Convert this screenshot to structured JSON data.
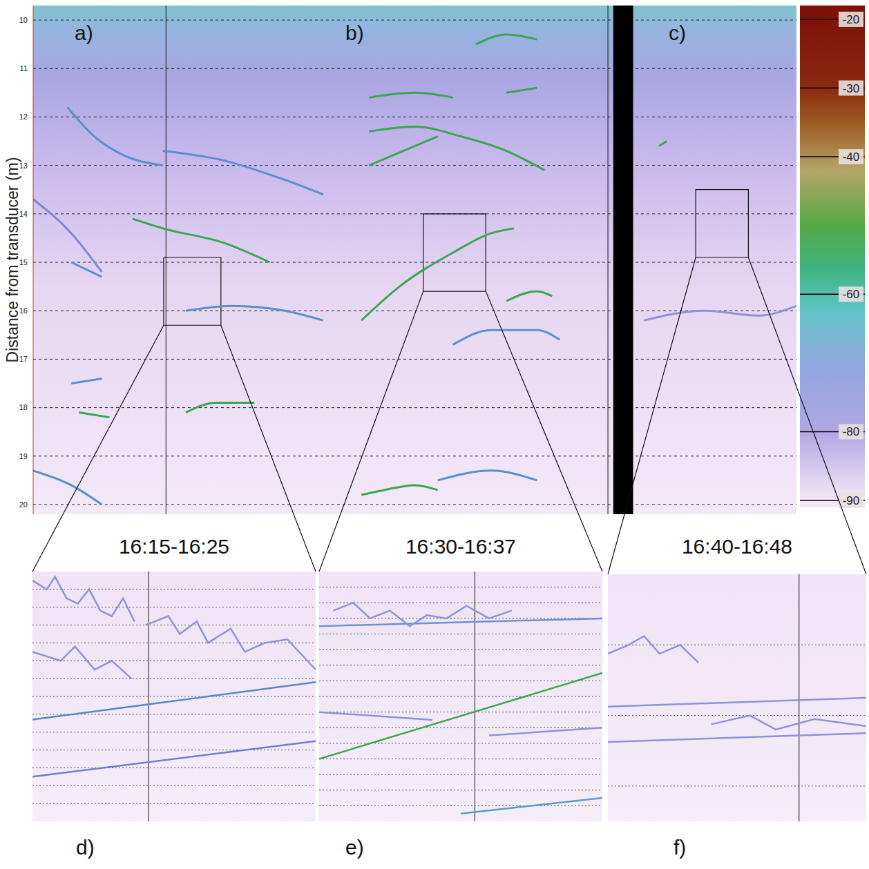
{
  "chart_data": [
    {
      "type": "line",
      "y_label": "Distance from transducer (m)",
      "panel_labels": [
        "a)",
        "b)",
        "c)"
      ],
      "xlim": [
        0,
        100
      ],
      "ylim": [
        9.7,
        20.2
      ],
      "yticks": [
        10,
        11,
        12,
        13,
        14,
        15,
        16,
        17,
        18,
        19,
        20
      ],
      "grid": true,
      "tick_labels": "y",
      "blank": [
        76.0,
        78.6
      ],
      "vlines": [
        17.4,
        75.3
      ],
      "zoom_boxes": [
        {
          "xlim": [
            17.1,
            24.6
          ],
          "ylim": [
            14.9,
            16.3
          ]
        },
        {
          "xlim": [
            51.1,
            59.3
          ],
          "ylim": [
            14.0,
            15.6
          ]
        },
        {
          "xlim": [
            86.8,
            93.7
          ],
          "ylim": [
            13.5,
            14.9
          ]
        }
      ],
      "colorbar": {
        "range": [
          -18,
          -91
        ],
        "ticks": [
          -20,
          -30,
          -40,
          -60,
          -80,
          -90
        ],
        "stops": [
          {
            "value": -20,
            "color": "#7f1208"
          },
          {
            "value": -30,
            "color": "#8a2a10"
          },
          {
            "value": -36,
            "color": "#a0642a"
          },
          {
            "value": -42,
            "color": "#b5a56a"
          },
          {
            "value": -50,
            "color": "#55a845"
          },
          {
            "value": -56,
            "color": "#3fb27c"
          },
          {
            "value": -62,
            "color": "#5ec4c4"
          },
          {
            "value": -70,
            "color": "#8fa8de"
          },
          {
            "value": -80,
            "color": "#b1a6e4"
          },
          {
            "value": -90,
            "color": "#f4e8f6"
          }
        ]
      },
      "series": [
        {
          "color": "#5b8fc9",
          "x": [
            4.5,
            8,
            12,
            17
          ],
          "values": [
            11.8,
            12.4,
            12.8,
            13.0
          ]
        },
        {
          "color": "#5b8fc9",
          "x": [
            17,
            25,
            33,
            38
          ],
          "values": [
            12.7,
            12.9,
            13.3,
            13.6
          ]
        },
        {
          "color": "#3aa650",
          "x": [
            13,
            17,
            25,
            31
          ],
          "values": [
            14.1,
            14.3,
            14.6,
            15.0
          ]
        },
        {
          "color": "#7d88d6",
          "x": [
            0,
            5,
            9
          ],
          "values": [
            13.7,
            14.4,
            15.2
          ]
        },
        {
          "color": "#5b8fc9",
          "x": [
            5,
            9
          ],
          "values": [
            15.0,
            15.3
          ]
        },
        {
          "color": "#5b8fc9",
          "x": [
            20,
            26,
            33,
            38
          ],
          "values": [
            16.0,
            15.9,
            16.0,
            16.2
          ]
        },
        {
          "color": "#3aa650",
          "x": [
            6,
            10
          ],
          "values": [
            18.1,
            18.2
          ]
        },
        {
          "color": "#3aa650",
          "x": [
            20,
            24,
            29
          ],
          "values": [
            18.1,
            17.9,
            17.9
          ]
        },
        {
          "color": "#5b8fc9",
          "x": [
            0,
            5,
            9
          ],
          "values": [
            19.3,
            19.6,
            20.0
          ]
        },
        {
          "color": "#5b8fc9",
          "x": [
            5,
            9
          ],
          "values": [
            17.5,
            17.4
          ]
        },
        {
          "color": "#3aa650",
          "x": [
            43,
            46,
            50,
            53
          ],
          "values": [
            19.8,
            19.7,
            19.6,
            19.7
          ]
        },
        {
          "color": "#3aa650",
          "x": [
            43,
            48,
            55,
            60,
            63
          ],
          "values": [
            16.2,
            15.5,
            14.8,
            14.4,
            14.3
          ]
        },
        {
          "color": "#3aa650",
          "x": [
            44,
            50,
            56,
            62,
            67
          ],
          "values": [
            12.3,
            12.2,
            12.4,
            12.7,
            13.1
          ]
        },
        {
          "color": "#3aa650",
          "x": [
            44,
            50,
            55
          ],
          "values": [
            11.6,
            11.5,
            11.6
          ]
        },
        {
          "color": "#3aa650",
          "x": [
            58,
            62,
            66
          ],
          "values": [
            10.5,
            10.3,
            10.4
          ]
        },
        {
          "color": "#3aa650",
          "x": [
            62,
            66
          ],
          "values": [
            11.5,
            11.4
          ]
        },
        {
          "color": "#3aa650",
          "x": [
            44,
            50,
            53
          ],
          "values": [
            13.0,
            12.6,
            12.4
          ]
        },
        {
          "color": "#3aa650",
          "x": [
            62,
            66,
            68
          ],
          "values": [
            15.8,
            15.6,
            15.7
          ]
        },
        {
          "color": "#5b8fc9",
          "x": [
            55,
            60,
            66,
            69
          ],
          "values": [
            16.7,
            16.4,
            16.4,
            16.6
          ]
        },
        {
          "color": "#5b8fc9",
          "x": [
            53,
            60,
            66
          ],
          "values": [
            19.5,
            19.3,
            19.5
          ]
        },
        {
          "color": "#3aa650",
          "x": [
            82,
            83
          ],
          "values": [
            12.6,
            12.5
          ]
        },
        {
          "color": "#8c93d8",
          "x": [
            80,
            88,
            95,
            100
          ],
          "values": [
            16.2,
            16.0,
            16.1,
            15.9
          ]
        }
      ]
    },
    {
      "type": "line",
      "title": "16:15-16:25",
      "label": "d)",
      "xlim": [
        0,
        100
      ],
      "ylim": [
        14.9,
        16.3
      ],
      "yticks": [
        15.0,
        15.1,
        15.2,
        15.3,
        15.4,
        15.5,
        15.6,
        15.7,
        15.8,
        15.9,
        16.0,
        16.1,
        16.2
      ],
      "grid": true,
      "tick_labels": false,
      "vlines": [
        41
      ],
      "series": [
        {
          "color": "#5a86c8",
          "x": [
            0,
            100
          ],
          "values": [
            15.73,
            15.52
          ]
        },
        {
          "color": "#6f7fcf",
          "x": [
            0,
            100
          ],
          "values": [
            16.05,
            15.85
          ]
        },
        {
          "color": "#8c93d8",
          "x": [
            0,
            5,
            8,
            12,
            16,
            20,
            24,
            28,
            32,
            36
          ],
          "values": [
            14.95,
            15.0,
            14.93,
            15.05,
            15.08,
            15.0,
            15.12,
            15.15,
            15.05,
            15.18
          ]
        },
        {
          "color": "#8c93d8",
          "x": [
            40,
            48,
            52,
            58,
            62,
            70,
            75,
            82,
            90,
            100
          ],
          "values": [
            15.2,
            15.15,
            15.25,
            15.18,
            15.3,
            15.22,
            15.35,
            15.3,
            15.28,
            15.45
          ]
        },
        {
          "color": "#8c93d8",
          "x": [
            0,
            10,
            15,
            22,
            28,
            35
          ],
          "values": [
            15.35,
            15.4,
            15.32,
            15.45,
            15.4,
            15.5
          ]
        }
      ]
    },
    {
      "type": "line",
      "title": "16:30-16:37",
      "label": "e)",
      "xlim": [
        0,
        100
      ],
      "ylim": [
        14.0,
        15.6
      ],
      "yticks": [
        14.1,
        14.2,
        14.3,
        14.4,
        14.5,
        14.6,
        14.7,
        14.8,
        14.9,
        15.0,
        15.1,
        15.2,
        15.3,
        15.4,
        15.5
      ],
      "grid": true,
      "tick_labels": false,
      "vlines": [
        55
      ],
      "series": [
        {
          "color": "#3aa650",
          "x": [
            0,
            100
          ],
          "values": [
            15.2,
            14.65
          ]
        },
        {
          "color": "#6f8fd0",
          "x": [
            0,
            100
          ],
          "values": [
            14.35,
            14.3
          ]
        },
        {
          "color": "#8c93d8",
          "x": [
            5,
            12,
            18,
            25,
            32,
            38,
            45,
            52,
            60,
            68
          ],
          "values": [
            14.25,
            14.2,
            14.3,
            14.25,
            14.35,
            14.28,
            14.3,
            14.22,
            14.3,
            14.25
          ]
        },
        {
          "color": "#5a9ad0",
          "x": [
            50,
            100
          ],
          "values": [
            15.55,
            15.45
          ]
        },
        {
          "color": "#8c93d8",
          "x": [
            0,
            40
          ],
          "values": [
            14.9,
            14.95
          ]
        },
        {
          "color": "#8c93d8",
          "x": [
            60,
            100
          ],
          "values": [
            15.05,
            15.0
          ]
        }
      ]
    },
    {
      "type": "line",
      "title": "16:40-16:48",
      "label": "f)",
      "xlim": [
        0,
        100
      ],
      "ylim": [
        13.5,
        14.9
      ],
      "yticks": [
        13.9,
        14.3,
        14.7
      ],
      "grid": true,
      "tick_labels": false,
      "vlines": [
        74
      ],
      "series": [
        {
          "color": "#8c93d8",
          "x": [
            0,
            100
          ],
          "values": [
            14.25,
            14.2
          ]
        },
        {
          "color": "#8c93d8",
          "x": [
            0,
            100
          ],
          "values": [
            14.45,
            14.4
          ]
        },
        {
          "color": "#8c93d8",
          "x": [
            0,
            8,
            14,
            20,
            28,
            35
          ],
          "values": [
            13.95,
            13.9,
            13.85,
            13.95,
            13.9,
            14.0
          ]
        },
        {
          "color": "#8c93d8",
          "x": [
            40,
            55,
            65,
            80,
            100
          ],
          "values": [
            14.35,
            14.3,
            14.38,
            14.32,
            14.36
          ]
        }
      ]
    }
  ]
}
